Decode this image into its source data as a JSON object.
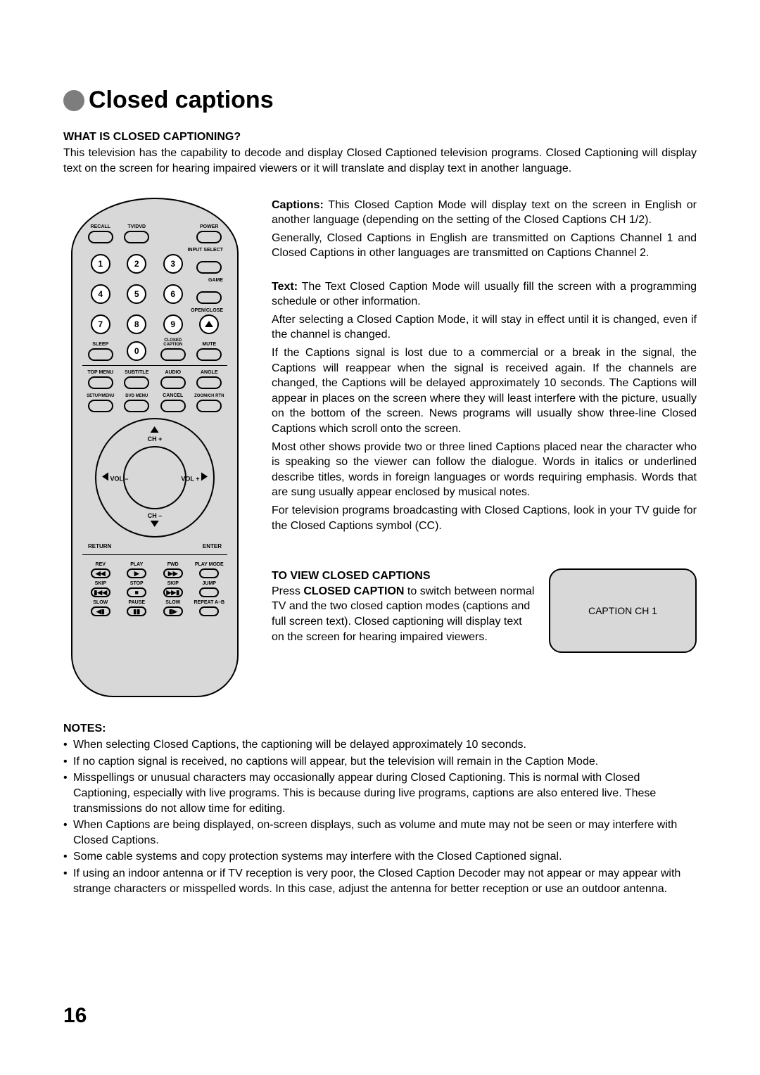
{
  "page": {
    "title": "Closed captions",
    "page_number": "16"
  },
  "intro": {
    "heading": "WHAT IS CLOSED CAPTIONING?",
    "text": "This television has the capability to decode and display Closed Captioned television programs. Closed Captioning will display text on the screen for hearing impaired viewers or it will translate and display text in another language."
  },
  "captions": {
    "label": "Captions:",
    "p1": " This Closed Caption Mode will display text on the screen in English or another language (depending on the setting of the Closed Captions CH 1/2).",
    "p2": "Generally, Closed Captions in English are transmitted on Captions Channel 1 and Closed Captions in other languages are transmitted on Captions Channel 2."
  },
  "text_mode": {
    "label": "Text:",
    "p1": " The Text Closed Caption Mode will usually fill the screen with a programming schedule or other information.",
    "p2": "After selecting a Closed Caption Mode, it will stay in effect until it is changed, even if the channel is changed.",
    "p3": "If the Captions signal is lost due to a commercial or a break in the signal, the Captions will reappear when the signal is received again. If the channels are changed, the Captions will be delayed approximately 10 seconds. The Captions will appear in places on the screen where they will least interfere with the picture, usually on the bottom of the screen. News programs will usually show three-line Closed Captions which scroll onto the screen.",
    "p4": "Most other shows provide two or three lined Captions placed near the character who is speaking so the viewer can follow the dialogue. Words in italics or underlined describe titles, words in foreign languages or words requiring emphasis. Words that are sung usually appear enclosed by musical notes.",
    "p5": "For television programs broadcasting with Closed Captions, look in your TV guide for the Closed Captions symbol (CC)."
  },
  "view": {
    "heading": "TO VIEW CLOSED CAPTIONS",
    "press": "Press ",
    "button": "CLOSED CAPTION",
    "after": " to switch between normal TV and the two closed caption modes (captions and full screen text). Closed captioning will display text on the screen for hearing impaired viewers.",
    "screen_text": "CAPTION  CH 1"
  },
  "notes": {
    "heading": "NOTES:",
    "items": [
      "When selecting Closed Captions, the captioning will be delayed approximately 10 seconds.",
      "If no caption signal is received, no captions will appear, but the television will remain in the Caption Mode.",
      "Misspellings or unusual characters may occasionally appear during Closed Captioning. This is normal with Closed Captioning, especially with live programs. This is because during live programs, captions are also entered live. These transmissions do not allow time for editing.",
      "When Captions are being displayed, on-screen displays, such as volume and mute may not be seen or may interfere with Closed Captions.",
      "Some cable systems and copy protection systems may interfere with the Closed Captioned signal.",
      "If using an indoor antenna or if TV reception is very poor, the Closed Caption Decoder may not appear or may appear with strange characters or misspelled words. In this case, adjust the antenna for better reception or use an outdoor antenna."
    ]
  },
  "remote": {
    "top_row": [
      "RECALL",
      "TV/DVD",
      "",
      "POWER"
    ],
    "input_select": "INPUT SELECT",
    "game": "GAME",
    "open_close": "OPEN/CLOSE",
    "row3_labels": [
      "SLEEP",
      "",
      "CLOSED CAPTION",
      "MUTE"
    ],
    "row4_labels": [
      "TOP MENU",
      "SUBTITLE",
      "AUDIO",
      "ANGLE"
    ],
    "row5_labels": [
      "SETUP/MENU",
      "DVD MENU",
      "CANCEL",
      "ZOOM/CH RTN"
    ],
    "numbers": [
      "1",
      "2",
      "3",
      "4",
      "5",
      "6",
      "7",
      "8",
      "9",
      "0"
    ],
    "nav": {
      "up": "CH +",
      "down": "CH –",
      "left": "VOL –",
      "right": "VOL +"
    },
    "side": {
      "left": "RETURN",
      "right": "ENTER"
    },
    "play_rows": [
      [
        "REV",
        "PLAY",
        "FWD",
        "PLAY MODE"
      ],
      [
        "SKIP",
        "STOP",
        "SKIP",
        "JUMP"
      ],
      [
        "SLOW",
        "PAUSE",
        "SLOW",
        "REPEAT A–B"
      ]
    ],
    "play_symbols": [
      [
        "◀◀",
        "▶",
        "▶▶",
        ""
      ],
      [
        "▮◀◀",
        "■",
        "▶▶▮",
        ""
      ],
      [
        "◀▮",
        "▮▮",
        "▮▶",
        ""
      ]
    ]
  }
}
